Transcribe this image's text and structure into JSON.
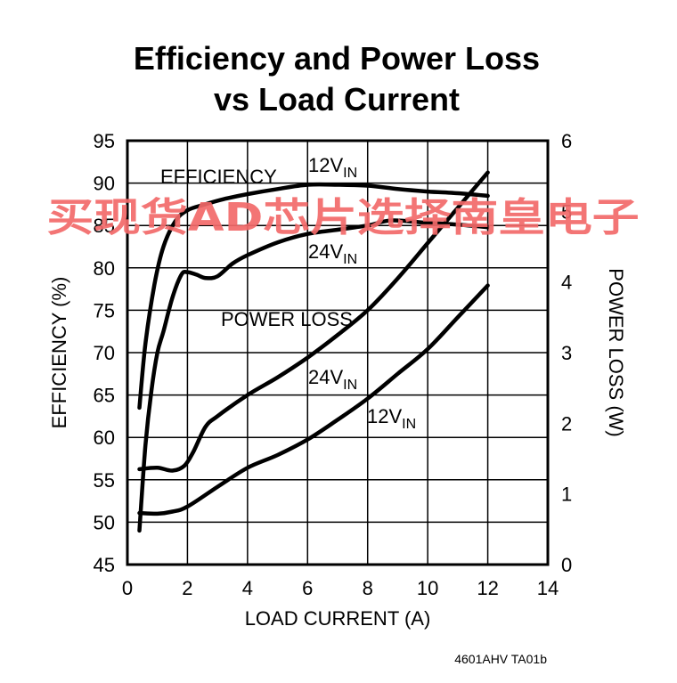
{
  "chart_data": {
    "type": "line",
    "title": [
      "Efficiency and Power Loss",
      "vs Load Current"
    ],
    "xlabel": "LOAD CURRENT (A)",
    "ylabel": "EFFICIENCY (%)",
    "y2label": "POWER LOSS (W)",
    "xlim": [
      0,
      14
    ],
    "ylim": [
      45,
      95
    ],
    "y2lim": [
      0,
      6
    ],
    "xticks": [
      "0",
      "2",
      "4",
      "6",
      "8",
      "10",
      "12",
      "14"
    ],
    "yticks": [
      "45",
      "50",
      "55",
      "60",
      "65",
      "70",
      "75",
      "80",
      "85",
      "90",
      "95"
    ],
    "y2ticks": [
      "0",
      "1",
      "2",
      "3",
      "4",
      "5",
      "6"
    ],
    "grid": true,
    "annotations": [
      {
        "text": "EFFICIENCY",
        "sub": ""
      },
      {
        "text": "12V",
        "sub": "IN"
      },
      {
        "text": "24V",
        "sub": "IN"
      },
      {
        "text": "POWER LOSS",
        "sub": ""
      },
      {
        "text": "24V",
        "sub": "IN"
      },
      {
        "text": "12V",
        "sub": "IN"
      }
    ],
    "series": [
      {
        "axis": "left",
        "x": [
          0.4,
          0.6,
          0.9,
          1.2,
          1.6,
          2.0,
          2.6,
          3.2,
          4.0,
          5.0,
          6.0,
          7.0,
          8.0,
          9.0,
          10.0,
          11.0,
          12.0
        ],
        "values": [
          63.5,
          71.0,
          78.0,
          82.5,
          85.5,
          86.8,
          87.5,
          88.1,
          88.7,
          89.3,
          89.8,
          89.8,
          89.7,
          89.3,
          89.0,
          88.8,
          88.5
        ]
      },
      {
        "axis": "left",
        "x": [
          0.4,
          0.6,
          0.8,
          1.0,
          1.2,
          1.5,
          1.8,
          2.0,
          2.3,
          2.6,
          3.0,
          3.5,
          4.0,
          5.0,
          6.0,
          7.0,
          8.0,
          8.8,
          10.0,
          11.0,
          12.0
        ],
        "values": [
          49.0,
          59.0,
          65.5,
          70.0,
          72.5,
          76.5,
          79.2,
          79.5,
          79.2,
          78.8,
          79.0,
          80.5,
          81.5,
          83.0,
          84.0,
          84.5,
          85.0,
          85.6,
          85.3,
          85.1,
          84.8
        ]
      },
      {
        "axis": "right",
        "x": [
          0.4,
          1.0,
          1.5,
          1.9,
          2.2,
          2.6,
          3.0,
          4.0,
          5.0,
          6.0,
          7.0,
          8.0,
          9.0,
          10.0,
          11.0,
          12.0
        ],
        "values": [
          1.35,
          1.37,
          1.33,
          1.4,
          1.6,
          1.95,
          2.1,
          2.4,
          2.65,
          2.93,
          3.25,
          3.6,
          4.05,
          4.55,
          5.05,
          5.55
        ]
      },
      {
        "axis": "right",
        "x": [
          0.4,
          1.0,
          1.5,
          2.0,
          3.0,
          4.0,
          5.0,
          6.0,
          7.0,
          8.0,
          9.0,
          10.0,
          11.0,
          12.0
        ],
        "values": [
          0.73,
          0.72,
          0.75,
          0.82,
          1.1,
          1.37,
          1.55,
          1.77,
          2.05,
          2.35,
          2.7,
          3.05,
          3.5,
          3.95
        ]
      }
    ]
  },
  "figure_code": "4601AHV TA01b",
  "watermark": "买现货AD芯片选择南皇电子"
}
